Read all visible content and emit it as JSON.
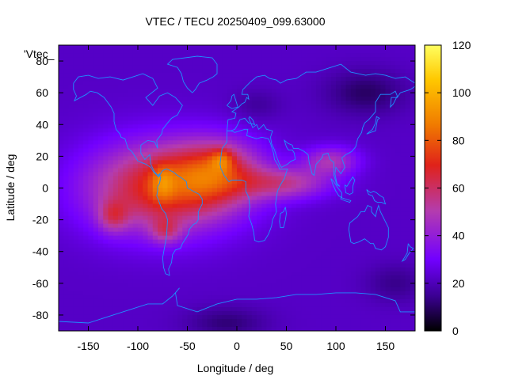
{
  "chart_data": {
    "type": "heatmap",
    "title": "VTEC / TECU 20250409_099.63000",
    "xlabel": "Longitude / deg",
    "ylabel": "Latitude / deg",
    "series_key": "'Vtec_",
    "xlim": [
      -180,
      180
    ],
    "ylim": [
      -90,
      90
    ],
    "x_ticks": [
      -150,
      -100,
      -50,
      0,
      50,
      100,
      150
    ],
    "y_ticks": [
      -80,
      -60,
      -40,
      -20,
      0,
      20,
      40,
      60,
      80
    ],
    "colorbar": {
      "min": 0,
      "max": 120,
      "ticks": [
        0,
        20,
        40,
        60,
        80,
        100,
        120
      ]
    },
    "palette": [
      "#000000",
      "#3a0090",
      "#7200ff",
      "#b43cae",
      "#e0221a",
      "#f07a00",
      "#ffc800",
      "#ffff60"
    ],
    "coastline_color": "#1e90ff",
    "grid": false
  }
}
